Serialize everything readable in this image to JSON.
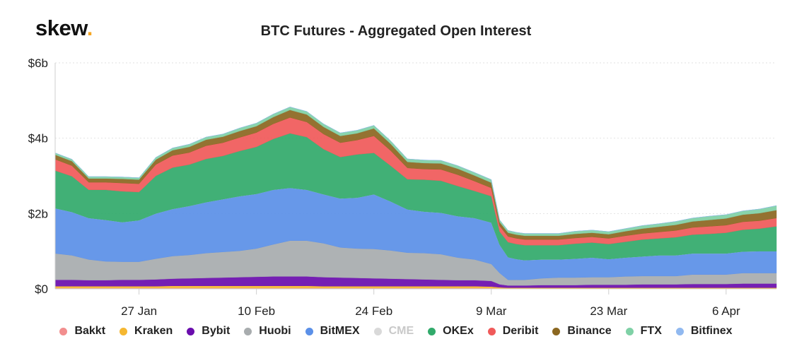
{
  "logo": {
    "text": "skew",
    "dot": "."
  },
  "chart_data": {
    "type": "area",
    "stacked": true,
    "title": "BTC Futures - Aggregated Open Interest",
    "xlabel": "",
    "ylabel": "",
    "ylim": [
      0,
      6
    ],
    "yticks": [
      "$0",
      "$2b",
      "$4b",
      "$6b"
    ],
    "ytick_values": [
      0,
      2,
      4,
      6
    ],
    "xticks": [
      "27 Jan",
      "10 Feb",
      "24 Feb",
      "9 Mar",
      "23 Mar",
      "6 Apr"
    ],
    "xtick_positions": [
      1580083200,
      1581292800,
      1582502400,
      1583712000,
      1584921600,
      1586131200
    ],
    "grid": true,
    "x": [
      1579219200,
      1579392000,
      1579564800,
      1579737600,
      1579910400,
      1580083200,
      1580256000,
      1580428800,
      1580601600,
      1580774400,
      1580947200,
      1581120000,
      1581292800,
      1581465600,
      1581638400,
      1581811200,
      1581984000,
      1582156800,
      1582329600,
      1582502400,
      1582675200,
      1582848000,
      1583020800,
      1583193600,
      1583366400,
      1583539200,
      1583712000,
      1583798400,
      1583884800,
      1583971200,
      1584057600,
      1584230400,
      1584403200,
      1584576000,
      1584748800,
      1584921600,
      1585094400,
      1585267200,
      1585440000,
      1585612800,
      1585785600,
      1585958400,
      1586131200,
      1586304000,
      1586476800,
      1586649600
    ],
    "series": [
      {
        "name": "Bakkt",
        "color": "#f28e8e",
        "values": [
          0.02,
          0.02,
          0.02,
          0.02,
          0.02,
          0.02,
          0.02,
          0.02,
          0.02,
          0.02,
          0.02,
          0.02,
          0.02,
          0.02,
          0.02,
          0.02,
          0.02,
          0.02,
          0.02,
          0.02,
          0.02,
          0.02,
          0.02,
          0.02,
          0.02,
          0.02,
          0.02,
          0.01,
          0.01,
          0.01,
          0.01,
          0.01,
          0.01,
          0.01,
          0.01,
          0.01,
          0.01,
          0.01,
          0.01,
          0.01,
          0.01,
          0.01,
          0.01,
          0.01,
          0.01,
          0.01
        ]
      },
      {
        "name": "Kraken",
        "color": "#f5b731",
        "values": [
          0.05,
          0.05,
          0.05,
          0.05,
          0.05,
          0.05,
          0.05,
          0.06,
          0.06,
          0.06,
          0.06,
          0.06,
          0.06,
          0.06,
          0.06,
          0.06,
          0.05,
          0.05,
          0.05,
          0.05,
          0.05,
          0.05,
          0.05,
          0.05,
          0.05,
          0.05,
          0.04,
          0.03,
          0.02,
          0.02,
          0.02,
          0.02,
          0.02,
          0.02,
          0.02,
          0.02,
          0.02,
          0.02,
          0.02,
          0.02,
          0.02,
          0.02,
          0.02,
          0.02,
          0.02,
          0.02
        ]
      },
      {
        "name": "Bybit",
        "color": "#6a0dad",
        "values": [
          0.17,
          0.17,
          0.16,
          0.16,
          0.17,
          0.17,
          0.18,
          0.19,
          0.2,
          0.21,
          0.22,
          0.23,
          0.24,
          0.25,
          0.25,
          0.25,
          0.24,
          0.23,
          0.22,
          0.21,
          0.2,
          0.19,
          0.18,
          0.17,
          0.16,
          0.16,
          0.15,
          0.08,
          0.06,
          0.06,
          0.06,
          0.07,
          0.07,
          0.07,
          0.08,
          0.08,
          0.08,
          0.09,
          0.09,
          0.09,
          0.1,
          0.1,
          0.1,
          0.11,
          0.11,
          0.11
        ]
      },
      {
        "name": "Huobi",
        "color": "#a8acae",
        "values": [
          0.7,
          0.65,
          0.55,
          0.5,
          0.48,
          0.48,
          0.55,
          0.6,
          0.62,
          0.66,
          0.68,
          0.7,
          0.75,
          0.85,
          0.95,
          0.95,
          0.9,
          0.8,
          0.78,
          0.78,
          0.75,
          0.7,
          0.7,
          0.68,
          0.6,
          0.55,
          0.45,
          0.3,
          0.15,
          0.15,
          0.15,
          0.18,
          0.2,
          0.2,
          0.2,
          0.2,
          0.22,
          0.22,
          0.22,
          0.22,
          0.25,
          0.25,
          0.25,
          0.28,
          0.28,
          0.28
        ]
      },
      {
        "name": "BitMEX",
        "color": "#5b90e8",
        "values": [
          1.2,
          1.15,
          1.1,
          1.1,
          1.05,
          1.1,
          1.2,
          1.25,
          1.3,
          1.35,
          1.4,
          1.45,
          1.45,
          1.45,
          1.4,
          1.35,
          1.3,
          1.3,
          1.35,
          1.45,
          1.3,
          1.15,
          1.1,
          1.1,
          1.1,
          1.1,
          1.1,
          0.75,
          0.6,
          0.55,
          0.52,
          0.5,
          0.48,
          0.5,
          0.52,
          0.48,
          0.5,
          0.52,
          0.55,
          0.55,
          0.56,
          0.56,
          0.56,
          0.57,
          0.58,
          0.58
        ]
      },
      {
        "name": "CME",
        "color": "#d5d7d9",
        "values": [
          0,
          0,
          0,
          0,
          0,
          0,
          0,
          0,
          0,
          0,
          0,
          0,
          0,
          0,
          0,
          0,
          0,
          0,
          0,
          0,
          0,
          0,
          0,
          0,
          0,
          0,
          0,
          0,
          0,
          0,
          0,
          0,
          0,
          0,
          0,
          0,
          0,
          0,
          0,
          0,
          0,
          0,
          0,
          0,
          0,
          0
        ],
        "hidden": true
      },
      {
        "name": "OKEx",
        "color": "#31aa6b",
        "values": [
          1.0,
          0.95,
          0.75,
          0.8,
          0.82,
          0.75,
          1.0,
          1.1,
          1.1,
          1.15,
          1.15,
          1.2,
          1.25,
          1.35,
          1.45,
          1.4,
          1.2,
          1.1,
          1.15,
          1.1,
          0.95,
          0.8,
          0.85,
          0.85,
          0.8,
          0.72,
          0.7,
          0.35,
          0.4,
          0.4,
          0.4,
          0.38,
          0.38,
          0.4,
          0.4,
          0.4,
          0.42,
          0.45,
          0.45,
          0.48,
          0.5,
          0.52,
          0.55,
          0.58,
          0.6,
          0.66
        ]
      },
      {
        "name": "Deribit",
        "color": "#f05a5a",
        "values": [
          0.3,
          0.28,
          0.2,
          0.2,
          0.22,
          0.22,
          0.3,
          0.32,
          0.32,
          0.35,
          0.35,
          0.36,
          0.38,
          0.4,
          0.42,
          0.4,
          0.4,
          0.38,
          0.38,
          0.45,
          0.4,
          0.3,
          0.28,
          0.3,
          0.3,
          0.26,
          0.22,
          0.15,
          0.15,
          0.15,
          0.15,
          0.15,
          0.15,
          0.15,
          0.15,
          0.15,
          0.16,
          0.16,
          0.17,
          0.18,
          0.19,
          0.2,
          0.2,
          0.21,
          0.21,
          0.22
        ]
      },
      {
        "name": "Binance",
        "color": "#8b6720",
        "values": [
          0.12,
          0.12,
          0.1,
          0.1,
          0.11,
          0.11,
          0.13,
          0.14,
          0.15,
          0.16,
          0.16,
          0.17,
          0.17,
          0.18,
          0.2,
          0.2,
          0.19,
          0.18,
          0.18,
          0.2,
          0.18,
          0.16,
          0.16,
          0.16,
          0.16,
          0.15,
          0.14,
          0.1,
          0.1,
          0.1,
          0.1,
          0.1,
          0.1,
          0.11,
          0.11,
          0.11,
          0.12,
          0.13,
          0.14,
          0.15,
          0.16,
          0.17,
          0.18,
          0.19,
          0.2,
          0.21
        ]
      },
      {
        "name": "FTX",
        "color": "#7fd1a6",
        "values": [
          0.05,
          0.05,
          0.05,
          0.05,
          0.05,
          0.05,
          0.06,
          0.06,
          0.07,
          0.07,
          0.07,
          0.08,
          0.08,
          0.08,
          0.08,
          0.08,
          0.08,
          0.08,
          0.08,
          0.08,
          0.08,
          0.08,
          0.08,
          0.08,
          0.08,
          0.08,
          0.08,
          0.06,
          0.06,
          0.06,
          0.06,
          0.06,
          0.06,
          0.07,
          0.07,
          0.07,
          0.07,
          0.08,
          0.08,
          0.09,
          0.09,
          0.1,
          0.1,
          0.1,
          0.11,
          0.12
        ]
      },
      {
        "name": "Bitfinex",
        "color": "#91b9f0",
        "values": [
          0,
          0,
          0,
          0,
          0,
          0,
          0,
          0,
          0,
          0,
          0,
          0,
          0,
          0,
          0,
          0,
          0,
          0,
          0,
          0,
          0,
          0,
          0,
          0,
          0,
          0,
          0,
          0,
          0,
          0,
          0,
          0,
          0,
          0,
          0,
          0,
          0,
          0,
          0,
          0,
          0,
          0,
          0,
          0,
          0,
          0
        ]
      }
    ]
  }
}
